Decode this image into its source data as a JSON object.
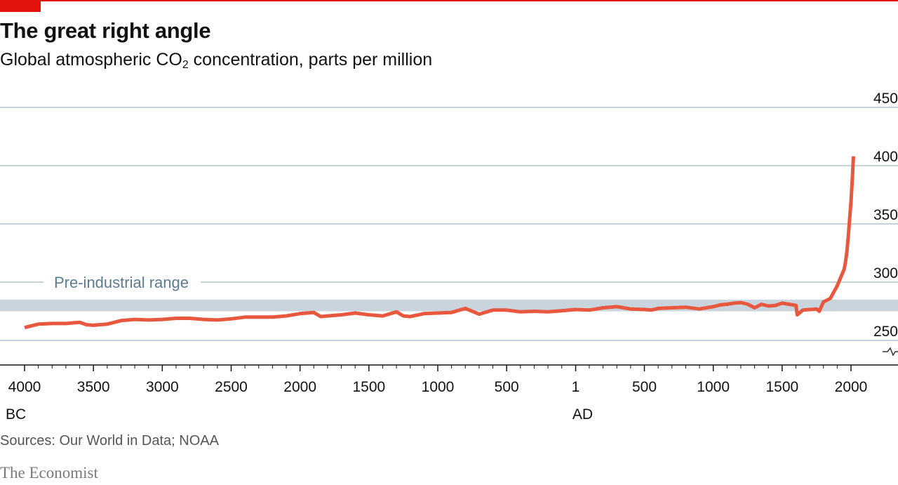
{
  "header": {
    "title": "The great right angle",
    "subtitle_prefix": "Global atmospheric CO",
    "subtitle_subscript": "2",
    "subtitle_suffix": " concentration, parts per million"
  },
  "footer": {
    "source": "Sources: Our World in Data; NOAA",
    "logo": "The Economist"
  },
  "colors": {
    "brand": "#e3120b",
    "line": "#e8583e",
    "band": "#c9d4dd",
    "grid": "#b4c3ce",
    "band_label": "#5b7d8f"
  },
  "chart_data": {
    "type": "line",
    "title": "The great right angle",
    "subtitle": "Global atmospheric CO2 concentration, parts per million",
    "xlabel": "",
    "ylabel": "",
    "x_unit": "year (negative = BC)",
    "xlim": [
      -4000,
      2000
    ],
    "ylim": [
      250,
      450
    ],
    "y_axis_broken": true,
    "y_ticks": [
      250,
      300,
      350,
      400,
      450
    ],
    "y_tick_labels": [
      "250",
      "300",
      "350",
      "400",
      "450"
    ],
    "y_axis_side": "right",
    "x_ticks": [
      -4000,
      -3500,
      -3000,
      -2500,
      -2000,
      -1500,
      -1000,
      -500,
      1,
      500,
      1000,
      1500,
      2000
    ],
    "x_tick_labels": [
      "4000",
      "3500",
      "3000",
      "2500",
      "2000",
      "1500",
      "1000",
      "500",
      "1",
      "500",
      "1000",
      "1500",
      "2000"
    ],
    "era_labels": [
      {
        "text": "BC",
        "x": -4000
      },
      {
        "text": "AD",
        "x": 1
      }
    ],
    "grid": true,
    "band": {
      "label": "Pre-industrial range",
      "y_range": [
        275,
        285
      ]
    },
    "series": [
      {
        "x": [
          -4000,
          -3900,
          -3800,
          -3700,
          -3600,
          -3550,
          -3500,
          -3400,
          -3300,
          -3200,
          -3100,
          -3000,
          -2900,
          -2800,
          -2700,
          -2600,
          -2500,
          -2400,
          -2300,
          -2200,
          -2100,
          -2000,
          -1900,
          -1850,
          -1800,
          -1700,
          -1600,
          -1500,
          -1400,
          -1300,
          -1250,
          -1200,
          -1100,
          -1000,
          -900,
          -800,
          -700,
          -600,
          -500,
          -400,
          -300,
          -200,
          -100,
          1,
          100,
          200,
          300,
          400,
          500,
          550,
          600,
          700,
          800,
          900,
          1000,
          1050,
          1100,
          1150,
          1200,
          1250,
          1300,
          1350,
          1400,
          1450,
          1500,
          1550,
          1600,
          1610,
          1650,
          1700,
          1750,
          1770,
          1800,
          1850,
          1900,
          1950,
          1960,
          1970,
          1980,
          1990,
          2000,
          2010,
          2018
        ],
        "values": [
          261,
          264,
          264.5,
          264.5,
          265.5,
          263.5,
          263,
          264,
          267,
          268,
          267.5,
          268,
          269,
          269,
          268,
          267.5,
          268.5,
          270,
          270,
          270,
          271,
          273,
          274,
          270.5,
          271,
          272,
          273.5,
          272,
          271,
          274.5,
          271,
          270.5,
          273,
          273.5,
          274,
          277.5,
          272.5,
          276,
          276,
          274.5,
          275,
          274.5,
          275.5,
          276.5,
          276,
          278,
          279,
          277,
          276.5,
          276,
          277.5,
          278,
          278.5,
          277,
          279,
          280.5,
          281,
          282,
          282.5,
          281,
          278,
          281,
          279.5,
          280,
          282,
          281,
          280,
          272,
          276,
          276.5,
          277,
          275,
          283,
          286,
          297,
          311,
          317,
          326,
          339,
          354,
          369,
          390,
          408
        ],
        "color": "#e8583e"
      }
    ]
  }
}
